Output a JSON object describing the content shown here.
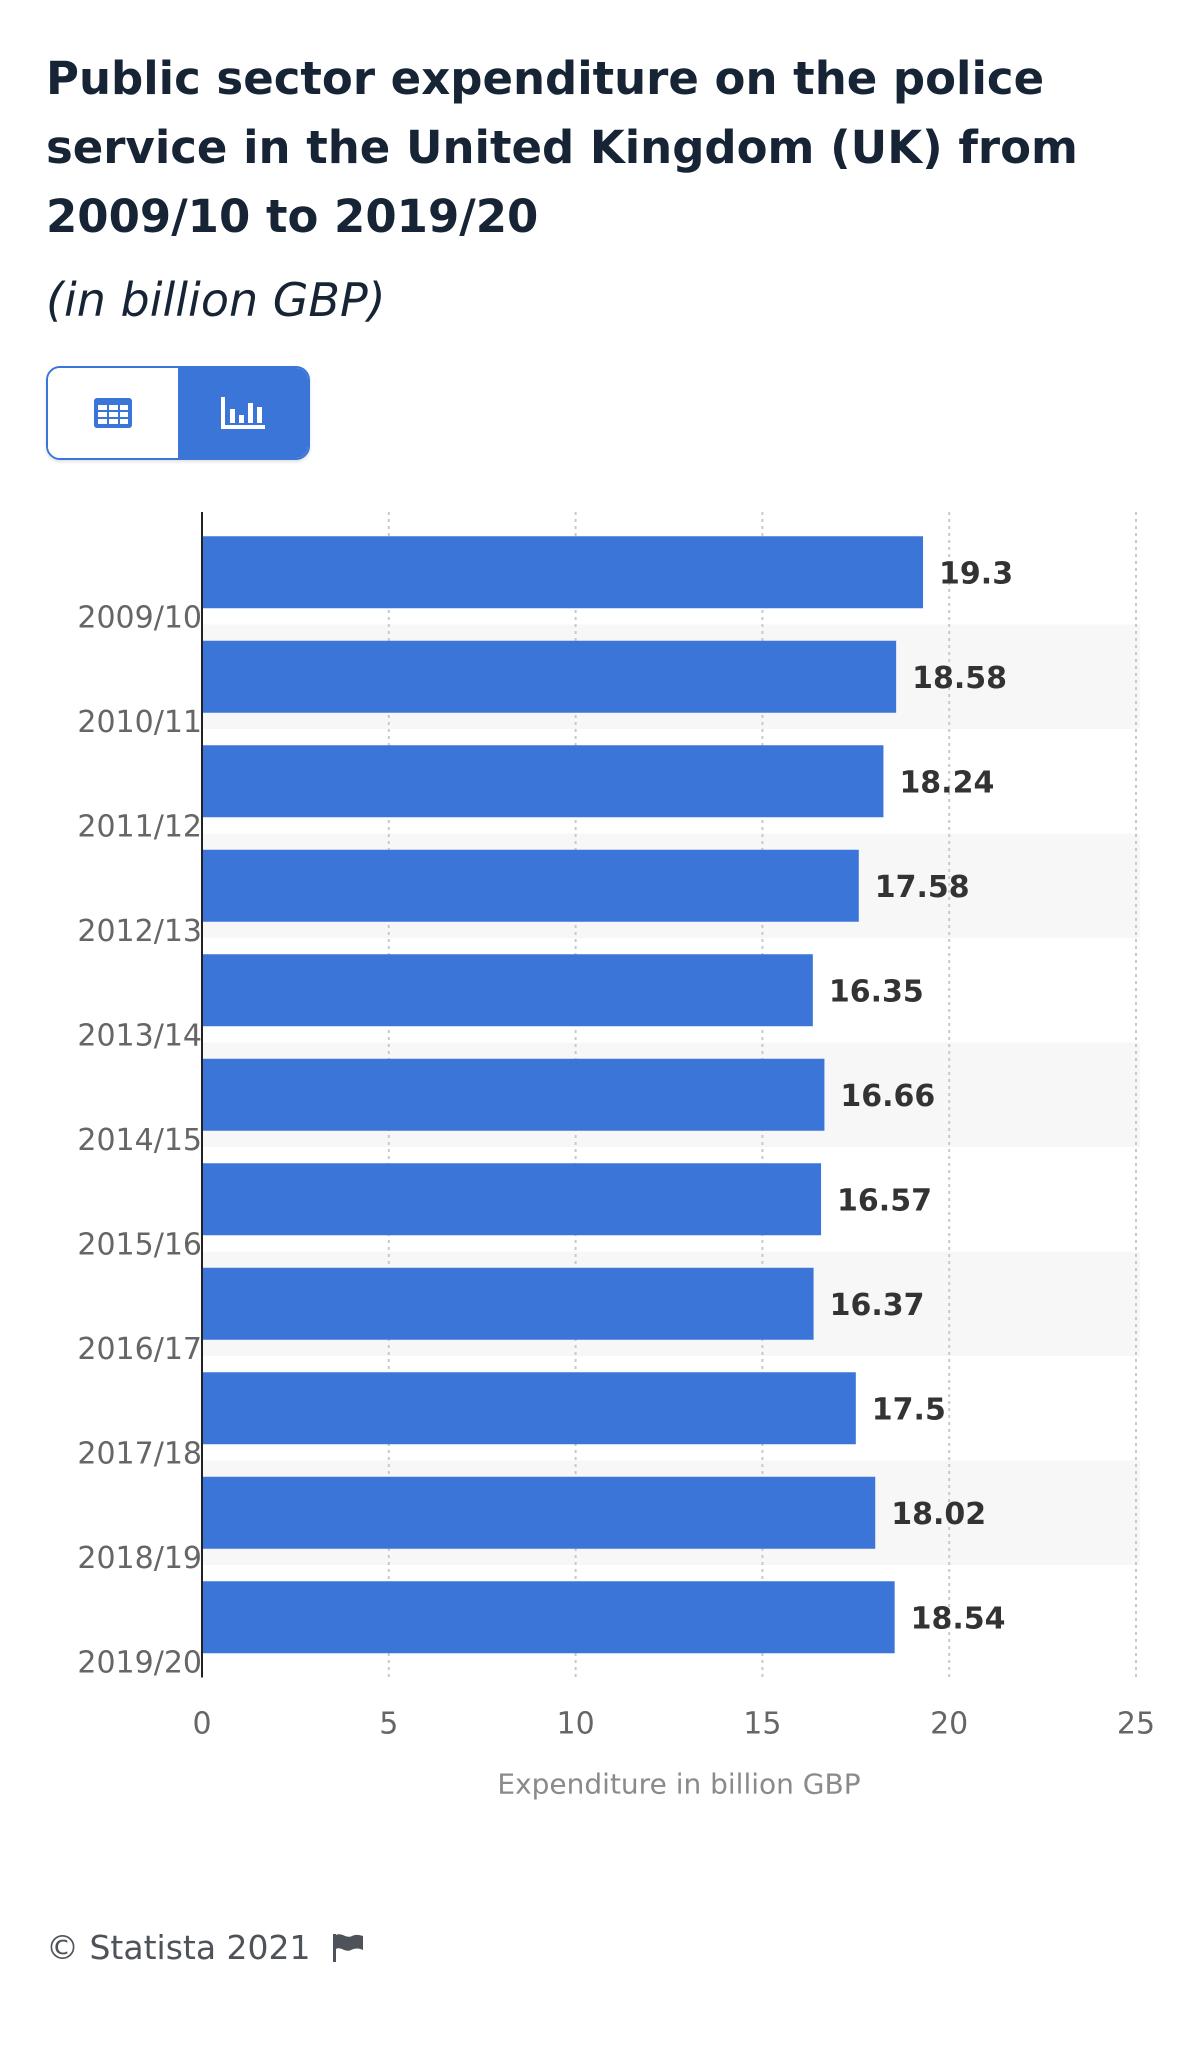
{
  "header": {
    "title": "Public sector expenditure on the police service in the United Kingdom (UK) from 2009/10 to 2019/20",
    "subtitle": "(in billion GBP)"
  },
  "view_toggle": {
    "table_icon": "table-icon",
    "chart_icon": "bar-chart-icon",
    "active": "chart"
  },
  "colors": {
    "bar": "#3c75d8",
    "accent": "#3c75d8",
    "title": "#162435"
  },
  "chart_data": {
    "type": "bar",
    "orientation": "horizontal",
    "categories": [
      "2009/10",
      "2010/11",
      "2011/12",
      "2012/13",
      "2013/14",
      "2014/15",
      "2015/16",
      "2016/17",
      "2017/18",
      "2018/19",
      "2019/20"
    ],
    "values": [
      19.3,
      18.58,
      18.24,
      17.58,
      16.35,
      16.66,
      16.57,
      16.37,
      17.5,
      18.02,
      18.54
    ],
    "value_labels": [
      "19.3",
      "18.58",
      "18.24",
      "17.58",
      "16.35",
      "16.66",
      "16.57",
      "16.37",
      "17.5",
      "18.02",
      "18.54"
    ],
    "x_ticks": [
      "0",
      "5",
      "10",
      "15",
      "20",
      "25"
    ],
    "xlim": [
      0,
      25
    ],
    "xlabel": "Expenditure in billion GBP",
    "ylabel": "",
    "grid": true,
    "legend": "none"
  },
  "footer": {
    "copyright": "© Statista 2021",
    "flag_icon": "flag-icon"
  }
}
